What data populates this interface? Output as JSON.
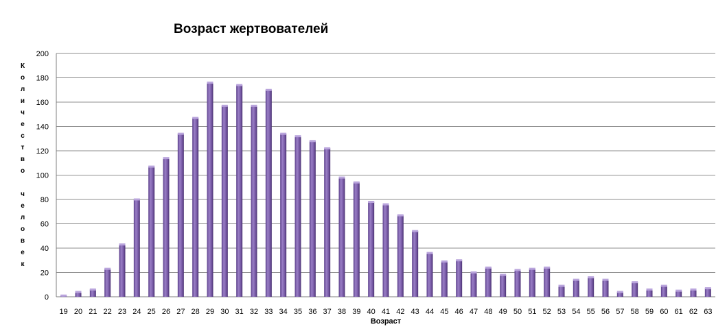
{
  "chart_data": {
    "type": "bar",
    "title": "Возраст жертвователей",
    "xlabel": "Возраст",
    "ylabel": "Количество человек",
    "ylim": [
      0,
      200
    ],
    "yticks": [
      0,
      20,
      40,
      60,
      80,
      100,
      120,
      140,
      160,
      180,
      200
    ],
    "grid": true,
    "legend": "none",
    "categories": [
      "19",
      "20",
      "21",
      "22",
      "23",
      "24",
      "25",
      "26",
      "27",
      "28",
      "29",
      "30",
      "31",
      "32",
      "33",
      "34",
      "35",
      "36",
      "37",
      "38",
      "39",
      "40",
      "41",
      "42",
      "43",
      "44",
      "45",
      "46",
      "47",
      "48",
      "49",
      "50",
      "51",
      "52",
      "53",
      "54",
      "55",
      "56",
      "57",
      "58",
      "59",
      "60",
      "61",
      "62",
      "63"
    ],
    "values": [
      1,
      4,
      6,
      23,
      43,
      80,
      107,
      114,
      134,
      147,
      176,
      157,
      174,
      157,
      170,
      134,
      132,
      128,
      122,
      98,
      94,
      78,
      76,
      67,
      54,
      36,
      29,
      30,
      20,
      24,
      18,
      22,
      23,
      24,
      9,
      14,
      16,
      14,
      4,
      12,
      6,
      9,
      5,
      6,
      7
    ],
    "bar_color": "#7b5ea7"
  }
}
